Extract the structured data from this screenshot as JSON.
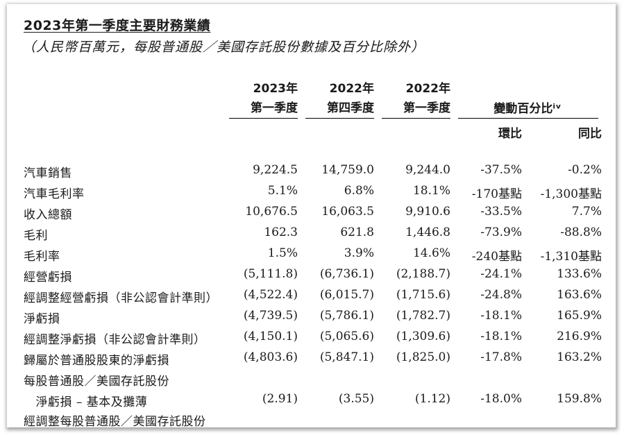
{
  "title": "2023年第一季度主要財務業績",
  "subtitle": "（人民幣百萬元，每股普通股／美國存託股份數據及百分比除外）",
  "headers": {
    "col1": {
      "line1": "2023年",
      "line2": "第一季度"
    },
    "col2": {
      "line1": "2022年",
      "line2": "第四季度"
    },
    "col3": {
      "line1": "2022年",
      "line2": "第一季度"
    },
    "change": "變動百分比ⁱᵛ",
    "qoq": "環比",
    "yoy": "同比"
  },
  "rows": [
    {
      "label": "汽車銷售",
      "v": [
        "9,224.5",
        "14,759.0",
        "9,244.0",
        "-37.5%",
        "-0.2%"
      ]
    },
    {
      "label": "汽車毛利率",
      "v": [
        "5.1%",
        "6.8%",
        "18.1%",
        "-170基點",
        "-1,300基點"
      ]
    },
    {
      "label": "收入總額",
      "v": [
        "10,676.5",
        "16,063.5",
        "9,910.6",
        "-33.5%",
        "7.7%"
      ]
    },
    {
      "label": "毛利",
      "v": [
        "162.3",
        "621.8",
        "1,446.8",
        "-73.9%",
        "-88.8%"
      ]
    },
    {
      "label": "毛利率",
      "v": [
        "1.5%",
        "3.9%",
        "14.6%",
        "-240基點",
        "-1,310基點"
      ]
    },
    {
      "label": "經營虧損",
      "v": [
        "(5,111.8)",
        "(6,736.1)",
        "(2,188.7)",
        "-24.1%",
        "133.6%"
      ]
    },
    {
      "label": "經調整經營虧損（非公認會計準則）",
      "v": [
        "(4,522.4)",
        "(6,015.7)",
        "(1,715.6)",
        "-24.8%",
        "163.6%"
      ]
    },
    {
      "label": "淨虧損",
      "v": [
        "(4,739.5)",
        "(5,786.1)",
        "(1,782.7)",
        "-18.1%",
        "165.9%"
      ]
    },
    {
      "label": "經調整淨虧損（非公認會計準則）",
      "v": [
        "(4,150.1)",
        "(5,065.6)",
        "(1,309.6)",
        "-18.1%",
        "216.9%"
      ]
    },
    {
      "label": "歸屬於普通股股東的淨虧損",
      "v": [
        "(4,803.6)",
        "(5,847.1)",
        "(1,825.0)",
        "-17.8%",
        "163.2%"
      ]
    },
    {
      "label": "每股普通股／美國存託股份",
      "v": [
        "",
        "",
        "",
        "",
        ""
      ]
    },
    {
      "label": "　淨虧損 – 基本及攤薄",
      "v": [
        "(2.91)",
        "(3.55)",
        "(1.12)",
        "-18.0%",
        "159.8%"
      ]
    },
    {
      "label": "經調整每股普通股／美國存託股份",
      "v": [
        "",
        "",
        "",
        "",
        ""
      ]
    }
  ]
}
